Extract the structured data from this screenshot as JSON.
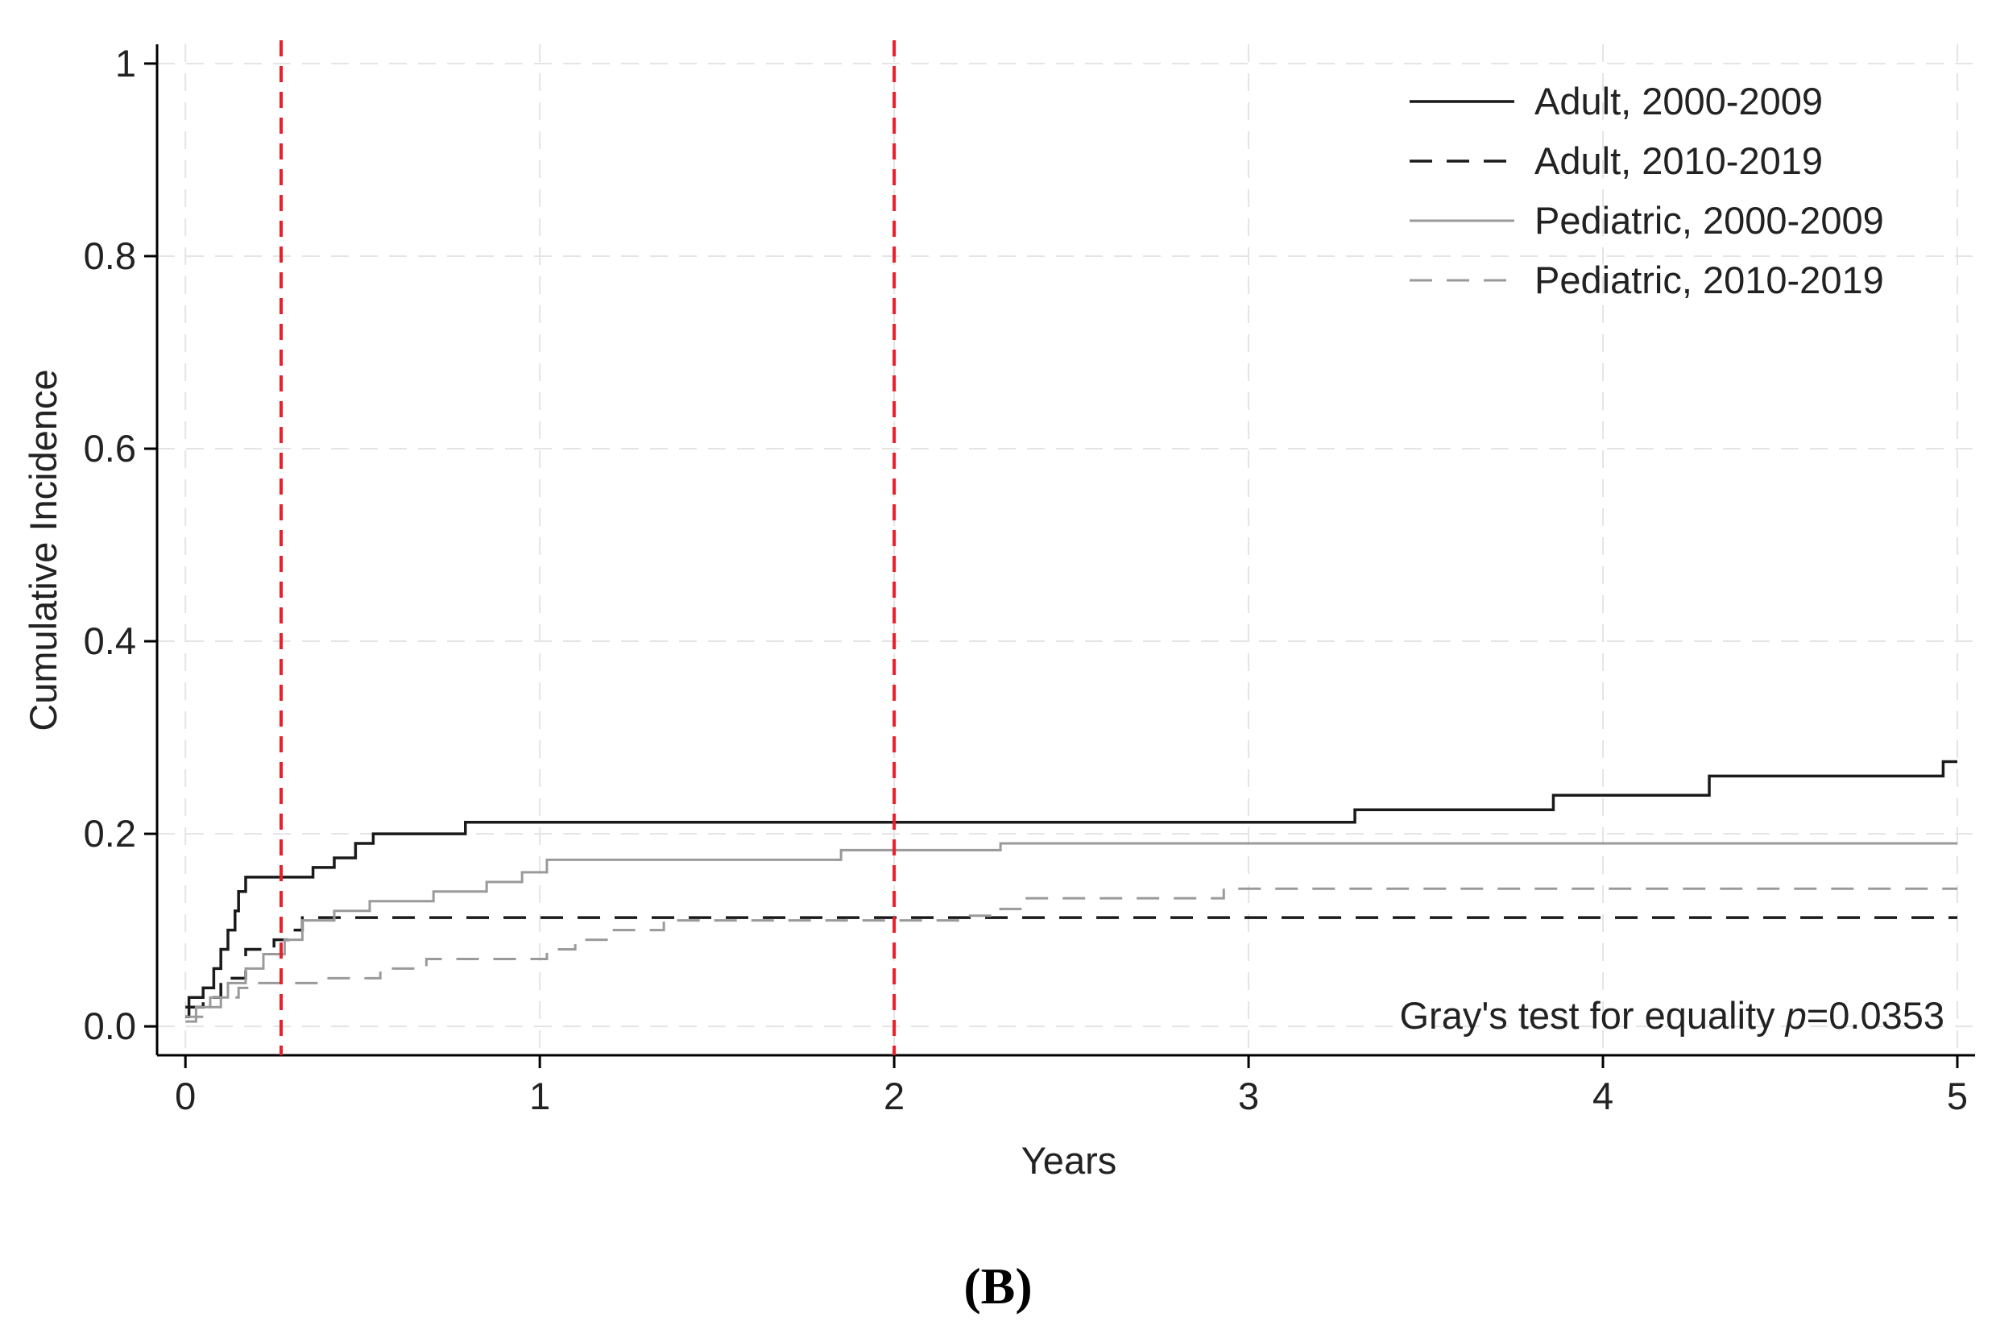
{
  "chart_data": {
    "type": "line",
    "subtype": "step",
    "xlabel": "Years",
    "ylabel": "Cumulative Incidence",
    "xlim": [
      -0.08,
      5.05
    ],
    "ylim": [
      -0.03,
      1.02
    ],
    "xticks": [
      0,
      1,
      2,
      3,
      4,
      5
    ],
    "xtick_labels": [
      "0",
      "1",
      "2",
      "3",
      "4",
      "5"
    ],
    "yticks": [
      0,
      0.2,
      0.4,
      0.6,
      0.8,
      1
    ],
    "ytick_labels": [
      "0.0",
      "0.2",
      "0.4",
      "0.6",
      "0.8",
      "1"
    ],
    "grid": true,
    "legend_position": "top-right",
    "reference_lines": [
      {
        "x": 0.27,
        "color": "#e8202a",
        "style": "dashed"
      },
      {
        "x": 2.0,
        "color": "#e8202a",
        "style": "dashed"
      }
    ],
    "annotation": {
      "prefix": "Gray's test for equality ",
      "italic": "p",
      "suffix": "=0.0353"
    },
    "panel_label": "(B)",
    "series": [
      {
        "name": "Adult, 2000-2009",
        "color": "#1a1a1a",
        "style": "solid",
        "points": [
          [
            0,
            0.01
          ],
          [
            0.01,
            0.03
          ],
          [
            0.05,
            0.04
          ],
          [
            0.08,
            0.06
          ],
          [
            0.1,
            0.08
          ],
          [
            0.12,
            0.1
          ],
          [
            0.14,
            0.12
          ],
          [
            0.15,
            0.14
          ],
          [
            0.17,
            0.155
          ],
          [
            0.36,
            0.165
          ],
          [
            0.42,
            0.175
          ],
          [
            0.48,
            0.19
          ],
          [
            0.53,
            0.2
          ],
          [
            0.79,
            0.212
          ],
          [
            3.3,
            0.225
          ],
          [
            3.86,
            0.24
          ],
          [
            4.3,
            0.26
          ],
          [
            4.96,
            0.275
          ],
          [
            5,
            0.275
          ]
        ]
      },
      {
        "name": "Adult, 2010-2019",
        "color": "#1a1a1a",
        "style": "dashed",
        "points": [
          [
            0,
            0.02
          ],
          [
            0.05,
            0.03
          ],
          [
            0.1,
            0.05
          ],
          [
            0.17,
            0.08
          ],
          [
            0.25,
            0.09
          ],
          [
            0.29,
            0.1
          ],
          [
            0.33,
            0.113
          ],
          [
            5,
            0.113
          ]
        ]
      },
      {
        "name": "Pediatric, 2000-2009",
        "color": "#9a9a9a",
        "style": "solid",
        "points": [
          [
            0,
            0.01
          ],
          [
            0.03,
            0.02
          ],
          [
            0.07,
            0.03
          ],
          [
            0.12,
            0.045
          ],
          [
            0.17,
            0.06
          ],
          [
            0.22,
            0.075
          ],
          [
            0.28,
            0.09
          ],
          [
            0.33,
            0.11
          ],
          [
            0.42,
            0.12
          ],
          [
            0.52,
            0.13
          ],
          [
            0.7,
            0.14
          ],
          [
            0.85,
            0.15
          ],
          [
            0.95,
            0.16
          ],
          [
            1.02,
            0.173
          ],
          [
            1.85,
            0.183
          ],
          [
            2.3,
            0.19
          ],
          [
            5,
            0.19
          ]
        ]
      },
      {
        "name": "Pediatric, 2010-2019",
        "color": "#9a9a9a",
        "style": "dashed",
        "points": [
          [
            0,
            0.005
          ],
          [
            0.03,
            0.01
          ],
          [
            0.06,
            0.02
          ],
          [
            0.1,
            0.03
          ],
          [
            0.15,
            0.04
          ],
          [
            0.2,
            0.045
          ],
          [
            0.4,
            0.05
          ],
          [
            0.55,
            0.06
          ],
          [
            0.68,
            0.07
          ],
          [
            1.02,
            0.08
          ],
          [
            1.1,
            0.09
          ],
          [
            1.2,
            0.1
          ],
          [
            1.35,
            0.11
          ],
          [
            2.2,
            0.115
          ],
          [
            2.3,
            0.122
          ],
          [
            2.37,
            0.133
          ],
          [
            2.93,
            0.143
          ],
          [
            5,
            0.143
          ]
        ]
      }
    ]
  }
}
